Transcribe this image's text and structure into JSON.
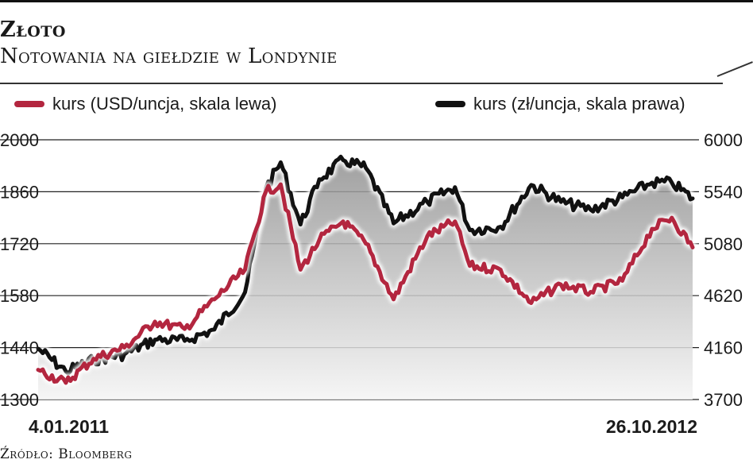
{
  "header": {
    "title": "Złoto",
    "subtitle": "Notowania na giełdzie w Londynie",
    "source": "Źródło: Bloomberg"
  },
  "legend": {
    "usd_label": "kurs (USD/uncja, skala lewa)",
    "pln_label": "kurs (zł/uncja, skala prawa)"
  },
  "colors": {
    "usd": "#b3263f",
    "pln": "#111111",
    "grid": "#222222",
    "area_top": "#8f8f8f",
    "area_bottom": "#f4f4f4"
  },
  "chart_data": {
    "type": "line",
    "title": "Złoto",
    "subtitle": "Notowania na giełdzie w Londynie",
    "x_start_label": "4.01.2011",
    "x_end_label": "26.10.2012",
    "left_axis": {
      "ylim": [
        1300,
        2000
      ],
      "ticks": [
        1300,
        1440,
        1580,
        1720,
        1860,
        2000
      ]
    },
    "right_axis": {
      "ylim": [
        3700,
        6000
      ],
      "ticks": [
        3700,
        4160,
        4620,
        5080,
        5540,
        6000
      ]
    },
    "grid": true,
    "legend_position": "top",
    "series": [
      {
        "name": "kurs (USD/uncja, skala lewa)",
        "axis": "left",
        "x": [
          "2011-01-04",
          "2011-02-01",
          "2011-03-01",
          "2011-04-01",
          "2011-05-02",
          "2011-06-01",
          "2011-07-01",
          "2011-08-01",
          "2011-08-22",
          "2011-09-06",
          "2011-09-26",
          "2011-10-15",
          "2011-11-08",
          "2011-12-01",
          "2011-12-29",
          "2012-02-01",
          "2012-02-29",
          "2012-03-15",
          "2012-04-15",
          "2012-05-16",
          "2012-06-15",
          "2012-07-15",
          "2012-08-16",
          "2012-09-15",
          "2012-10-05",
          "2012-10-26"
        ],
        "values": [
          1380,
          1345,
          1410,
          1440,
          1510,
          1490,
          1570,
          1650,
          1860,
          1880,
          1650,
          1730,
          1780,
          1720,
          1570,
          1740,
          1780,
          1660,
          1650,
          1560,
          1610,
          1590,
          1620,
          1760,
          1790,
          1710
        ]
      },
      {
        "name": "kurs (zł/uncja, skala prawa)",
        "axis": "right",
        "x": [
          "2011-01-04",
          "2011-02-01",
          "2011-03-01",
          "2011-04-01",
          "2011-05-02",
          "2011-06-01",
          "2011-07-01",
          "2011-08-01",
          "2011-08-22",
          "2011-09-06",
          "2011-09-26",
          "2011-10-15",
          "2011-11-08",
          "2011-12-01",
          "2011-12-29",
          "2012-02-01",
          "2012-02-29",
          "2012-03-15",
          "2012-04-15",
          "2012-05-16",
          "2012-06-15",
          "2012-07-15",
          "2012-08-16",
          "2012-09-15",
          "2012-10-05",
          "2012-10-26"
        ],
        "values": [
          4150,
          3950,
          4050,
          4100,
          4230,
          4220,
          4320,
          4650,
          5570,
          5800,
          5250,
          5650,
          5820,
          5750,
          5260,
          5450,
          5580,
          5200,
          5230,
          5600,
          5450,
          5380,
          5490,
          5620,
          5620,
          5480
        ]
      }
    ]
  }
}
